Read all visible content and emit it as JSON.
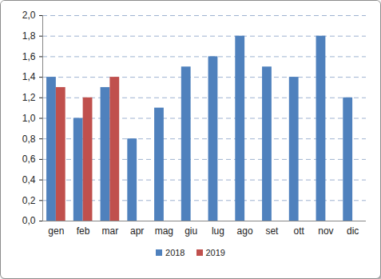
{
  "chart_data": {
    "type": "bar",
    "categories": [
      "gen",
      "feb",
      "mar",
      "apr",
      "mag",
      "giu",
      "lug",
      "ago",
      "set",
      "ott",
      "nov",
      "dic"
    ],
    "series": [
      {
        "name": "2018",
        "color": "#4f81bd",
        "values": [
          1.4,
          1.0,
          1.3,
          0.8,
          1.1,
          1.5,
          1.6,
          1.8,
          1.5,
          1.4,
          1.8,
          1.2
        ]
      },
      {
        "name": "2019",
        "color": "#c0504d",
        "values": [
          1.3,
          1.2,
          1.4,
          null,
          null,
          null,
          null,
          null,
          null,
          null,
          null,
          null
        ]
      }
    ],
    "ylim": [
      0,
      2
    ],
    "yticks": [
      {
        "value": 0,
        "label": "0,0"
      },
      {
        "value": 0.2,
        "label": "0,2"
      },
      {
        "value": 0.4,
        "label": "0,4"
      },
      {
        "value": 0.6,
        "label": "0,6"
      },
      {
        "value": 0.8,
        "label": "0,8"
      },
      {
        "value": 1.0,
        "label": "1,0"
      },
      {
        "value": 1.2,
        "label": "1,2"
      },
      {
        "value": 1.4,
        "label": "1,4"
      },
      {
        "value": 1.6,
        "label": "1,6"
      },
      {
        "value": 1.8,
        "label": "1,8"
      },
      {
        "value": 2.0,
        "label": "2,0"
      }
    ],
    "grid": true,
    "legend": "bottom"
  }
}
